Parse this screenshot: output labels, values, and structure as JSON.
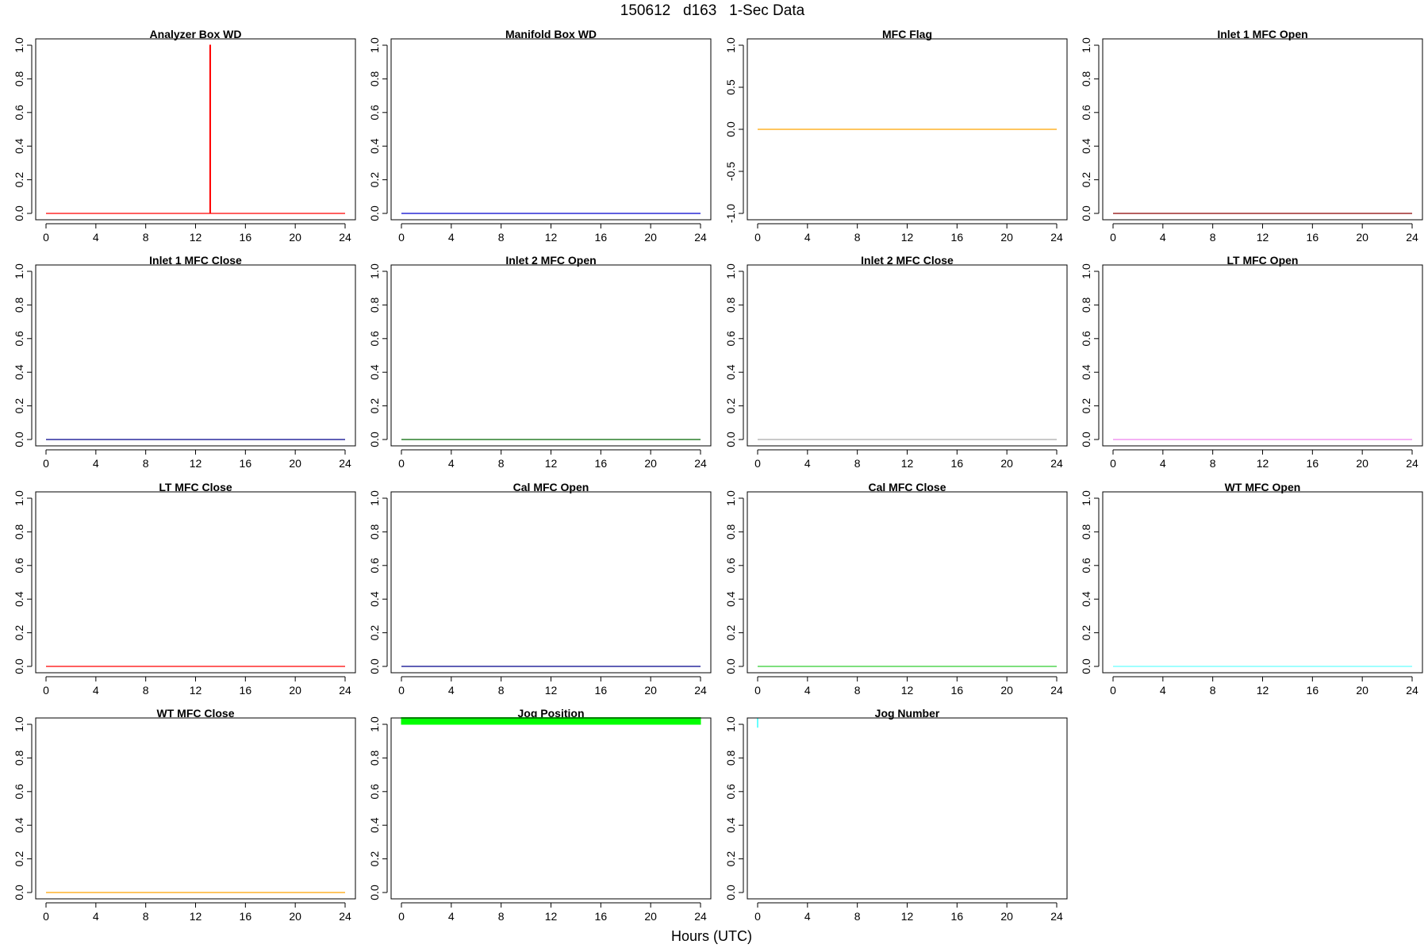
{
  "figure": {
    "title": "150612   d163   1-Sec Data",
    "xlabel": "Hours (UTC)"
  },
  "chart_data": [
    {
      "type": "line",
      "title": "Analyzer Box WD",
      "color": "#ff0000",
      "xlim": [
        0,
        24
      ],
      "ylim": [
        0,
        1
      ],
      "xticks": [
        0,
        4,
        8,
        12,
        16,
        20,
        24
      ],
      "yticks": [
        "0.0",
        "0.2",
        "0.4",
        "0.6",
        "0.8",
        "1.0"
      ],
      "x": [
        0,
        13.15,
        13.15,
        13.2,
        13.2,
        24
      ],
      "y": [
        0,
        0,
        1,
        1,
        0,
        0
      ]
    },
    {
      "type": "line",
      "title": "Manifold Box WD",
      "color": "#0000cd",
      "xlim": [
        0,
        24
      ],
      "ylim": [
        0,
        1
      ],
      "xticks": [
        0,
        4,
        8,
        12,
        16,
        20,
        24
      ],
      "yticks": [
        "0.0",
        "0.2",
        "0.4",
        "0.6",
        "0.8",
        "1.0"
      ],
      "x": [
        0,
        24
      ],
      "y": [
        0,
        0
      ]
    },
    {
      "type": "line",
      "title": "MFC Flag",
      "color": "#ffa500",
      "xlim": [
        0,
        24
      ],
      "ylim": [
        -1,
        1
      ],
      "xticks": [
        0,
        4,
        8,
        12,
        16,
        20,
        24
      ],
      "yticks": [
        "-1.0",
        "-0.5",
        "0.0",
        "0.5",
        "1.0"
      ],
      "x": [
        0,
        24
      ],
      "y": [
        0,
        0
      ]
    },
    {
      "type": "line",
      "title": "Inlet 1 MFC Open",
      "color": "#8b0000",
      "xlim": [
        0,
        24
      ],
      "ylim": [
        0,
        1
      ],
      "xticks": [
        0,
        4,
        8,
        12,
        16,
        20,
        24
      ],
      "yticks": [
        "0.0",
        "0.2",
        "0.4",
        "0.6",
        "0.8",
        "1.0"
      ],
      "x": [
        0,
        24
      ],
      "y": [
        0,
        0
      ]
    },
    {
      "type": "line",
      "title": "Inlet 1 MFC Close",
      "color": "#00008b",
      "xlim": [
        0,
        24
      ],
      "ylim": [
        0,
        1
      ],
      "xticks": [
        0,
        4,
        8,
        12,
        16,
        20,
        24
      ],
      "yticks": [
        "0.0",
        "0.2",
        "0.4",
        "0.6",
        "0.8",
        "1.0"
      ],
      "x": [
        0,
        24
      ],
      "y": [
        0,
        0
      ]
    },
    {
      "type": "line",
      "title": "Inlet 2 MFC Open",
      "color": "#006400",
      "xlim": [
        0,
        24
      ],
      "ylim": [
        0,
        1
      ],
      "xticks": [
        0,
        4,
        8,
        12,
        16,
        20,
        24
      ],
      "yticks": [
        "0.0",
        "0.2",
        "0.4",
        "0.6",
        "0.8",
        "1.0"
      ],
      "x": [
        0,
        24
      ],
      "y": [
        0,
        0
      ]
    },
    {
      "type": "line",
      "title": "Inlet 2 MFC Close",
      "color": "#a9a9a9",
      "xlim": [
        0,
        24
      ],
      "ylim": [
        0,
        1
      ],
      "xticks": [
        0,
        4,
        8,
        12,
        16,
        20,
        24
      ],
      "yticks": [
        "0.0",
        "0.2",
        "0.4",
        "0.6",
        "0.8",
        "1.0"
      ],
      "x": [
        0,
        24
      ],
      "y": [
        0,
        0
      ]
    },
    {
      "type": "line",
      "title": "LT MFC Open",
      "color": "#ee82ee",
      "xlim": [
        0,
        24
      ],
      "ylim": [
        0,
        1
      ],
      "xticks": [
        0,
        4,
        8,
        12,
        16,
        20,
        24
      ],
      "yticks": [
        "0.0",
        "0.2",
        "0.4",
        "0.6",
        "0.8",
        "1.0"
      ],
      "x": [
        0,
        24
      ],
      "y": [
        0,
        0
      ]
    },
    {
      "type": "line",
      "title": "LT MFC Close",
      "color": "#ff0000",
      "xlim": [
        0,
        24
      ],
      "ylim": [
        0,
        1
      ],
      "xticks": [
        0,
        4,
        8,
        12,
        16,
        20,
        24
      ],
      "yticks": [
        "0.0",
        "0.2",
        "0.4",
        "0.6",
        "0.8",
        "1.0"
      ],
      "x": [
        0,
        24
      ],
      "y": [
        0,
        0
      ]
    },
    {
      "type": "line",
      "title": "Cal MFC Open",
      "color": "#00008b",
      "xlim": [
        0,
        24
      ],
      "ylim": [
        0,
        1
      ],
      "xticks": [
        0,
        4,
        8,
        12,
        16,
        20,
        24
      ],
      "yticks": [
        "0.0",
        "0.2",
        "0.4",
        "0.6",
        "0.8",
        "1.0"
      ],
      "x": [
        0,
        24
      ],
      "y": [
        0,
        0
      ]
    },
    {
      "type": "line",
      "title": "Cal MFC Close",
      "color": "#32cd32",
      "xlim": [
        0,
        24
      ],
      "ylim": [
        0,
        1
      ],
      "xticks": [
        0,
        4,
        8,
        12,
        16,
        20,
        24
      ],
      "yticks": [
        "0.0",
        "0.2",
        "0.4",
        "0.6",
        "0.8",
        "1.0"
      ],
      "x": [
        0,
        24
      ],
      "y": [
        0,
        0
      ]
    },
    {
      "type": "line",
      "title": "WT MFC Open",
      "color": "#66ffff",
      "xlim": [
        0,
        24
      ],
      "ylim": [
        0,
        1
      ],
      "xticks": [
        0,
        4,
        8,
        12,
        16,
        20,
        24
      ],
      "yticks": [
        "0.0",
        "0.2",
        "0.4",
        "0.6",
        "0.8",
        "1.0"
      ],
      "x": [
        0,
        24
      ],
      "y": [
        0,
        0
      ]
    },
    {
      "type": "line",
      "title": "WT MFC Close",
      "color": "#ffa500",
      "xlim": [
        0,
        24
      ],
      "ylim": [
        0,
        1
      ],
      "xticks": [
        0,
        4,
        8,
        12,
        16,
        20,
        24
      ],
      "yticks": [
        "0.0",
        "0.2",
        "0.4",
        "0.6",
        "0.8",
        "1.0"
      ],
      "x": [
        0,
        24
      ],
      "y": [
        0,
        0
      ]
    },
    {
      "type": "area",
      "title": "Jog Position",
      "color": "#00ff00",
      "xlim": [
        0,
        24
      ],
      "ylim": [
        0,
        1
      ],
      "xticks": [
        0,
        4,
        8,
        12,
        16,
        20,
        24
      ],
      "yticks": [
        "0.0",
        "0.2",
        "0.4",
        "0.6",
        "0.8",
        "1.0"
      ],
      "x": [
        0,
        24
      ],
      "y_low": [
        1.0,
        1.0
      ],
      "y_high": [
        1.04,
        1.04
      ]
    },
    {
      "type": "line",
      "title": "Jog Number",
      "color": "#66ffff",
      "xlim": [
        0,
        24
      ],
      "ylim": [
        0,
        1
      ],
      "xticks": [
        0,
        4,
        8,
        12,
        16,
        20,
        24
      ],
      "yticks": [
        "0.0",
        "0.2",
        "0.4",
        "0.6",
        "0.8",
        "1.0"
      ],
      "x": [
        0,
        0
      ],
      "y": [
        0.98,
        1.04
      ]
    }
  ]
}
